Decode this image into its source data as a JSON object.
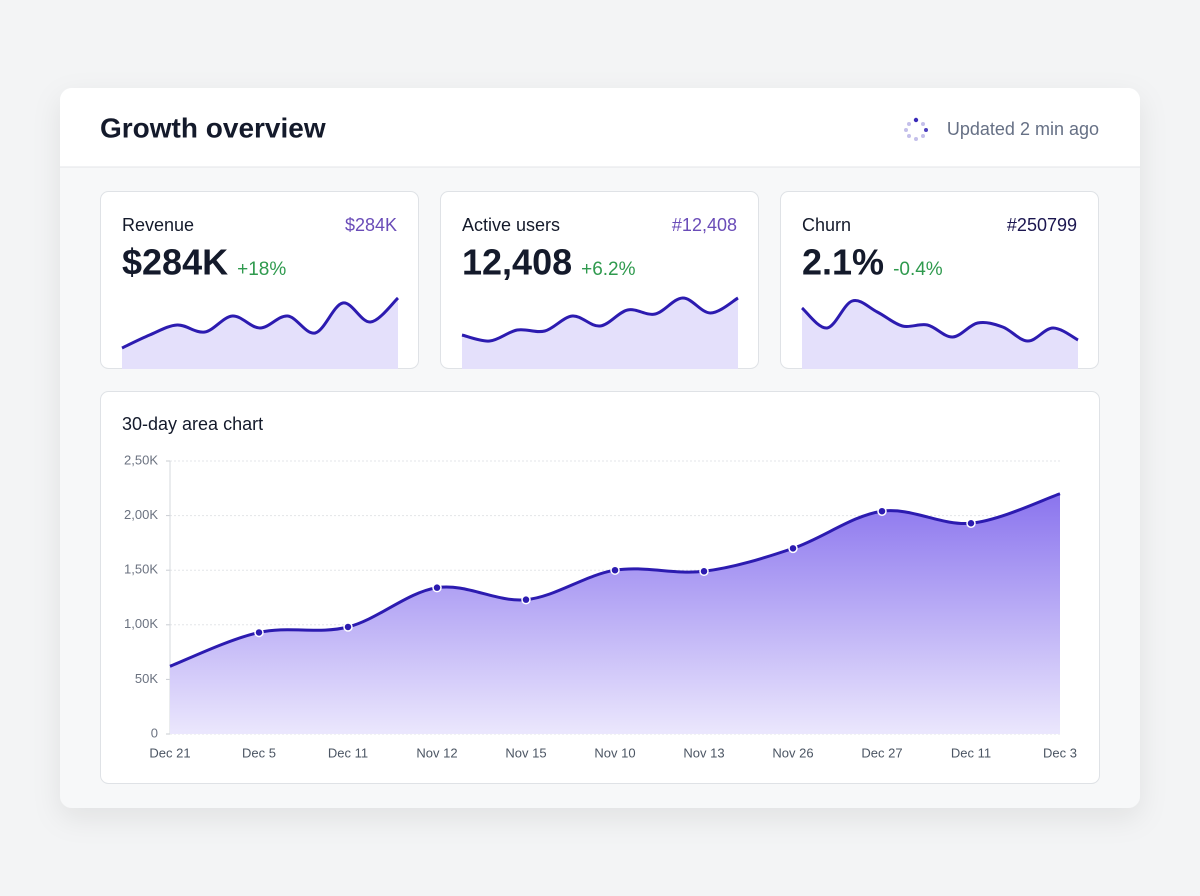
{
  "header": {
    "title": "Growth overview",
    "status": "Updated 2 min ago"
  },
  "cards": [
    {
      "label": "Revenue",
      "tag": "$284K",
      "tag_color": "#6a4cb8",
      "value": "$284K",
      "delta": "+18%",
      "sparkline": [
        21,
        34,
        44,
        37,
        53,
        41,
        53,
        36,
        66,
        47,
        71
      ]
    },
    {
      "label": "Active users",
      "tag": "#12,408",
      "tag_color": "#6a4cb8",
      "value": "12,408",
      "delta": "+6.2%",
      "sparkline": [
        34,
        28,
        39,
        38,
        53,
        43,
        59,
        55,
        71,
        56,
        71
      ]
    },
    {
      "label": "Churn",
      "tag": "#250799",
      "tag_color": "#1b1650",
      "value": "2.1%",
      "delta": "-0.4%",
      "sparkline": [
        61,
        41,
        68,
        57,
        43,
        44,
        32,
        46,
        42,
        28,
        41,
        29
      ]
    }
  ],
  "chart_data": {
    "type": "area",
    "title": "30-day area chart",
    "categories": [
      "Dec 21",
      "Dec 5",
      "Dec 11",
      "Nov 12",
      "Nov 15",
      "Nov 10",
      "Nov 13",
      "Nov 26",
      "Dec 27",
      "Dec 11",
      "Dec 3"
    ],
    "values": [
      62,
      93,
      98,
      134,
      123,
      150,
      149,
      170,
      204,
      193,
      220
    ],
    "color": "#2c1bb0",
    "ylim": [
      0,
      250
    ],
    "yticks": [
      0,
      {
        "value": 50,
        "label": "50K"
      },
      {
        "value": 100,
        "label": "1,00K"
      },
      {
        "value": 150,
        "label": "1,50K"
      },
      {
        "value": 200,
        "label": "2,00K"
      },
      {
        "value": 250,
        "label": "2,50K"
      }
    ],
    "grid": true
  }
}
